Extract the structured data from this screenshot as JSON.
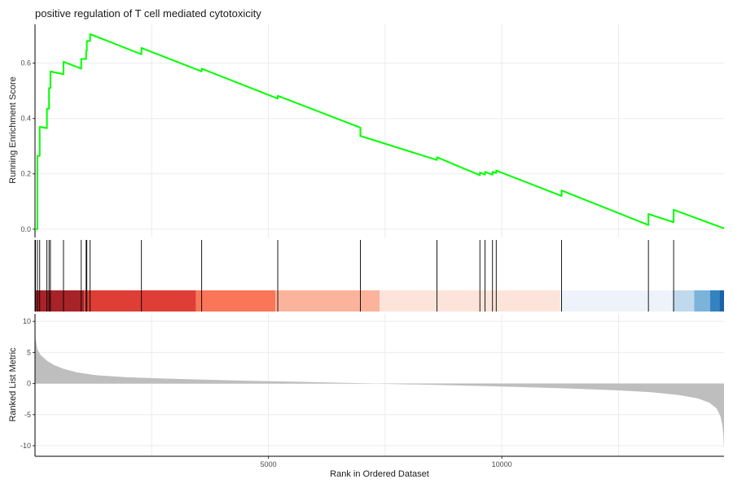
{
  "chart_data": {
    "type": "line",
    "title": "positive regulation of T cell mediated cytotoxicity",
    "xlabel": "Rank in Ordered Dataset",
    "xlim": [
      0,
      14760
    ],
    "xticks": [
      5000,
      10000
    ],
    "xgrid": [
      2500,
      5000,
      7500,
      10000,
      12500
    ],
    "grid": true,
    "legend": "none",
    "colors": {
      "running_score": "#00ff00",
      "hit_line": "#000000",
      "metric_area": "#bebebe",
      "axis": "#000000",
      "grid": "#ebebeb"
    },
    "enrichment": {
      "ylabel": "Running Enrichment Score",
      "ylim": [
        -0.03,
        0.74
      ],
      "yticks": [
        0.0,
        0.2,
        0.4,
        0.6
      ],
      "ytick_labels": [
        "0.0",
        "0.2",
        "0.4",
        "0.6"
      ],
      "points": [
        [
          0,
          0
        ],
        [
          52,
          0
        ],
        [
          52,
          0.265
        ],
        [
          100,
          0.265
        ],
        [
          100,
          0.37
        ],
        [
          255,
          0.365
        ],
        [
          255,
          0.435
        ],
        [
          300,
          0.435
        ],
        [
          300,
          0.51
        ],
        [
          330,
          0.51
        ],
        [
          330,
          0.57
        ],
        [
          610,
          0.56
        ],
        [
          610,
          0.605
        ],
        [
          990,
          0.58
        ],
        [
          990,
          0.615
        ],
        [
          1095,
          0.615
        ],
        [
          1095,
          0.645
        ],
        [
          1110,
          0.645
        ],
        [
          1110,
          0.68
        ],
        [
          1180,
          0.68
        ],
        [
          1180,
          0.705
        ],
        [
          2280,
          0.632
        ],
        [
          2280,
          0.655
        ],
        [
          3570,
          0.57
        ],
        [
          3570,
          0.58
        ],
        [
          5200,
          0.472
        ],
        [
          5200,
          0.482
        ],
        [
          6970,
          0.367
        ],
        [
          6970,
          0.337
        ],
        [
          8610,
          0.25
        ],
        [
          8610,
          0.26
        ],
        [
          9530,
          0.195
        ],
        [
          9530,
          0.205
        ],
        [
          9640,
          0.197
        ],
        [
          9640,
          0.207
        ],
        [
          9800,
          0.197
        ],
        [
          9800,
          0.207
        ],
        [
          9880,
          0.203
        ],
        [
          9880,
          0.212
        ],
        [
          11280,
          0.12
        ],
        [
          11280,
          0.14
        ],
        [
          13140,
          0.015
        ],
        [
          13140,
          0.055
        ],
        [
          13680,
          0.025
        ],
        [
          13680,
          0.07
        ],
        [
          14760,
          0.003
        ]
      ]
    },
    "hits": [
      10,
      52,
      100,
      255,
      300,
      330,
      610,
      990,
      1095,
      1110,
      1180,
      2280,
      3570,
      5200,
      6970,
      8610,
      9530,
      9640,
      9800,
      9880,
      11280,
      13140,
      13680
    ],
    "color_bands": [
      {
        "from": 0,
        "to": 1050,
        "color": "#a82328"
      },
      {
        "from": 1050,
        "to": 3450,
        "color": "#de3e36"
      },
      {
        "from": 3450,
        "to": 5150,
        "color": "#fb7558"
      },
      {
        "from": 5150,
        "to": 7380,
        "color": "#fcb39b"
      },
      {
        "from": 7380,
        "to": 11250,
        "color": "#fde4da"
      },
      {
        "from": 11250,
        "to": 13660,
        "color": "#eef3fb"
      },
      {
        "from": 13660,
        "to": 14120,
        "color": "#c1d9ec"
      },
      {
        "from": 14120,
        "to": 14460,
        "color": "#7bb3db"
      },
      {
        "from": 14460,
        "to": 14660,
        "color": "#3283bf"
      },
      {
        "from": 14660,
        "to": 14760,
        "color": "#1a63a8"
      }
    ],
    "ranked_metric": {
      "ylabel": "Ranked List Metric",
      "ylim": [
        -11.7,
        11.2
      ],
      "yticks": [
        -10,
        -5,
        0,
        5,
        10
      ],
      "ytick_labels": [
        "-10",
        "-5",
        "0",
        "5",
        "10"
      ],
      "points": [
        [
          0,
          9.5
        ],
        [
          10,
          7.2
        ],
        [
          50,
          5.5
        ],
        [
          120,
          4.6
        ],
        [
          250,
          3.7
        ],
        [
          400,
          3.0
        ],
        [
          600,
          2.4
        ],
        [
          900,
          1.8
        ],
        [
          1300,
          1.35
        ],
        [
          1900,
          1.05
        ],
        [
          2600,
          0.85
        ],
        [
          3500,
          0.65
        ],
        [
          4500,
          0.45
        ],
        [
          5500,
          0.3
        ],
        [
          6500,
          0.15
        ],
        [
          7200,
          0.03
        ],
        [
          7500,
          -0.05
        ],
        [
          8500,
          -0.2
        ],
        [
          9500,
          -0.38
        ],
        [
          10500,
          -0.58
        ],
        [
          11500,
          -0.8
        ],
        [
          12500,
          -1.1
        ],
        [
          13200,
          -1.4
        ],
        [
          13800,
          -1.85
        ],
        [
          14200,
          -2.4
        ],
        [
          14450,
          -3.1
        ],
        [
          14600,
          -4.0
        ],
        [
          14680,
          -5.2
        ],
        [
          14720,
          -6.5
        ],
        [
          14745,
          -8.2
        ],
        [
          14760,
          -10.8
        ]
      ]
    }
  }
}
